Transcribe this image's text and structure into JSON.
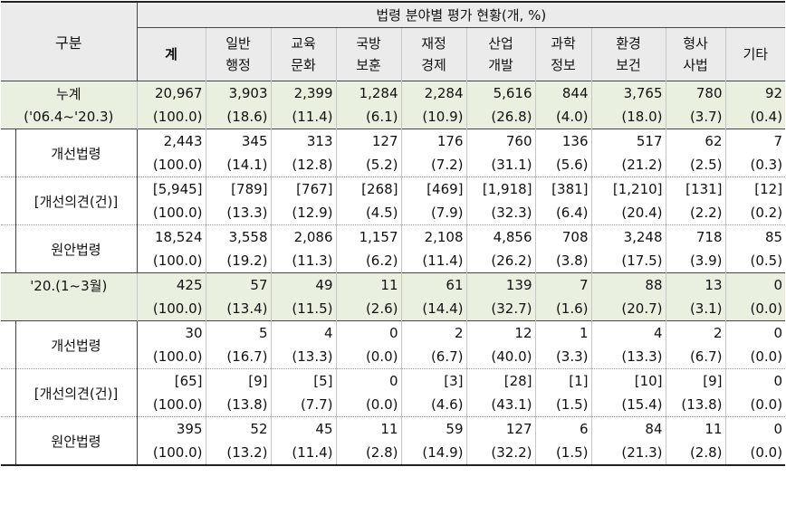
{
  "title": "법령 분야별 평가 현황(개, %)",
  "gubun": "구분",
  "columns": [
    [
      "계"
    ],
    [
      "일반",
      "행정"
    ],
    [
      "교육",
      "문화"
    ],
    [
      "국방",
      "보훈"
    ],
    [
      "재정",
      "경제"
    ],
    [
      "산업",
      "개발"
    ],
    [
      "과학",
      "정보"
    ],
    [
      "환경",
      "보건"
    ],
    [
      "형사",
      "사법"
    ],
    [
      "기타"
    ]
  ],
  "groups": [
    {
      "label1": "누계",
      "label2": "('06.4~'20.3)",
      "values": [
        "20,967",
        "3,903",
        "2,399",
        "1,284",
        "2,284",
        "5,616",
        "844",
        "3,765",
        "780",
        "92"
      ],
      "pcts": [
        "(100.0)",
        "(18.6)",
        "(11.4)",
        "(6.1)",
        "(10.9)",
        "(26.8)",
        "(4.0)",
        "(18.0)",
        "(3.7)",
        "(0.4)"
      ],
      "rows": [
        {
          "label": "개선법령",
          "values": [
            "2,443",
            "345",
            "313",
            "127",
            "176",
            "760",
            "136",
            "517",
            "62",
            "7"
          ],
          "pcts": [
            "(100.0)",
            "(14.1)",
            "(12.8)",
            "(5.2)",
            "(7.2)",
            "(31.1)",
            "(5.6)",
            "(21.2)",
            "(2.5)",
            "(0.3)"
          ]
        },
        {
          "label": "[개선의견(건)]",
          "values": [
            "[5,945]",
            "[789]",
            "[767]",
            "[268]",
            "[469]",
            "[1,918]",
            "[381]",
            "[1,210]",
            "[131]",
            "[12]"
          ],
          "pcts": [
            "(100.0)",
            "(13.3)",
            "(12.9)",
            "(4.5)",
            "(7.9)",
            "(32.3)",
            "(6.4)",
            "(20.4)",
            "(2.2)",
            "(0.2)"
          ]
        },
        {
          "label": "원안법령",
          "values": [
            "18,524",
            "3,558",
            "2,086",
            "1,157",
            "2,108",
            "4,856",
            "708",
            "3,248",
            "718",
            "85"
          ],
          "pcts": [
            "(100.0)",
            "(19.2)",
            "(11.3)",
            "(6.2)",
            "(11.4)",
            "(26.2)",
            "(3.8)",
            "(17.5)",
            "(3.9)",
            "(0.5)"
          ]
        }
      ]
    },
    {
      "label1": "'20.(1~3월)",
      "label2": "",
      "values": [
        "425",
        "57",
        "49",
        "11",
        "61",
        "139",
        "7",
        "88",
        "13",
        "0"
      ],
      "pcts": [
        "(100.0)",
        "(13.4)",
        "(11.5)",
        "(2.6)",
        "(14.4)",
        "(32.7)",
        "(1.6)",
        "(20.7)",
        "(3.1)",
        "(0.0)"
      ],
      "rows": [
        {
          "label": "개선법령",
          "values": [
            "30",
            "5",
            "4",
            "0",
            "2",
            "12",
            "1",
            "4",
            "2",
            "0"
          ],
          "pcts": [
            "(100.0)",
            "(16.7)",
            "(13.3)",
            "(0.0)",
            "(6.7)",
            "(40.0)",
            "(3.3)",
            "(13.3)",
            "(6.7)",
            "(0.0)"
          ]
        },
        {
          "label": "[개선의견(건)]",
          "values": [
            "[65]",
            "[9]",
            "[5]",
            "0",
            "[3]",
            "[28]",
            "[1]",
            "[10]",
            "[9]",
            "0"
          ],
          "pcts": [
            "(100.0)",
            "(13.8)",
            "(7.7)",
            "(0.0)",
            "(4.6)",
            "(43.1)",
            "(1.5)",
            "(15.4)",
            "(13.8)",
            "(0.0)"
          ]
        },
        {
          "label": "원안법령",
          "values": [
            "395",
            "52",
            "45",
            "11",
            "59",
            "127",
            "6",
            "84",
            "11",
            "0"
          ],
          "pcts": [
            "(100.0)",
            "(13.2)",
            "(11.4)",
            "(2.8)",
            "(14.9)",
            "(32.2)",
            "(1.5)",
            "(21.3)",
            "(2.8)",
            "(0.0)"
          ]
        }
      ]
    }
  ]
}
